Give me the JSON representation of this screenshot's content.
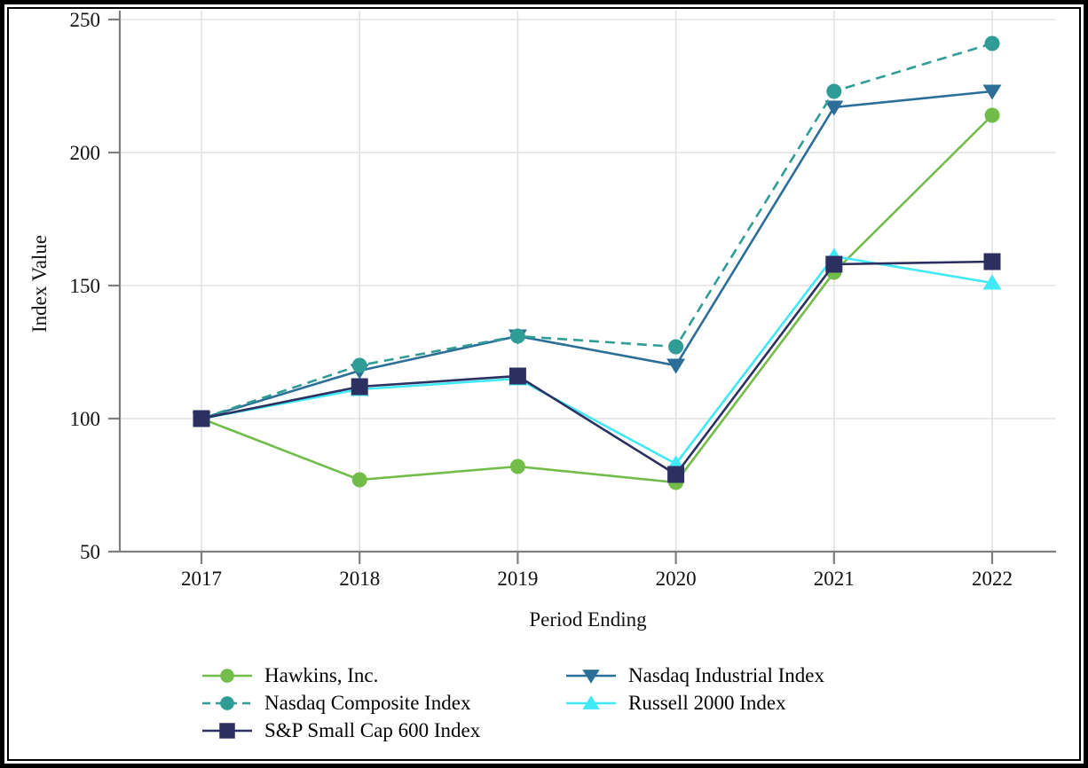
{
  "chart_data": {
    "type": "line",
    "title": "",
    "xlabel": "Period Ending",
    "ylabel": "Index Value",
    "x": [
      "2017",
      "2018",
      "2019",
      "2020",
      "2021",
      "2022"
    ],
    "ylim": [
      50,
      250
    ],
    "yticks": [
      50,
      100,
      150,
      200,
      250
    ],
    "grid": true,
    "legend_position": "bottom, two columns",
    "series": [
      {
        "name": "Hawkins, Inc.",
        "marker": "circle",
        "dash": "solid",
        "color": "#72bd4a",
        "values": [
          100,
          77,
          82,
          76,
          155,
          214
        ]
      },
      {
        "name": "Nasdaq Composite Index",
        "marker": "circle",
        "dash": "dashed",
        "color": "#2f9c96",
        "values": [
          100,
          120,
          131,
          127,
          223,
          241
        ]
      },
      {
        "name": "S&P Small Cap 600 Index",
        "marker": "square",
        "dash": "solid",
        "color": "#2c3060",
        "values": [
          100,
          112,
          116,
          79,
          158,
          159
        ]
      },
      {
        "name": "Nasdaq Industrial Index",
        "marker": "triangle-down",
        "dash": "solid",
        "color": "#2b6f99",
        "values": [
          100,
          118,
          131,
          120,
          217,
          223
        ]
      },
      {
        "name": "Russell 2000 Index",
        "marker": "triangle-up",
        "dash": "solid",
        "color": "#41e9f7",
        "values": [
          100,
          111,
          115,
          83,
          161,
          151
        ]
      }
    ]
  }
}
